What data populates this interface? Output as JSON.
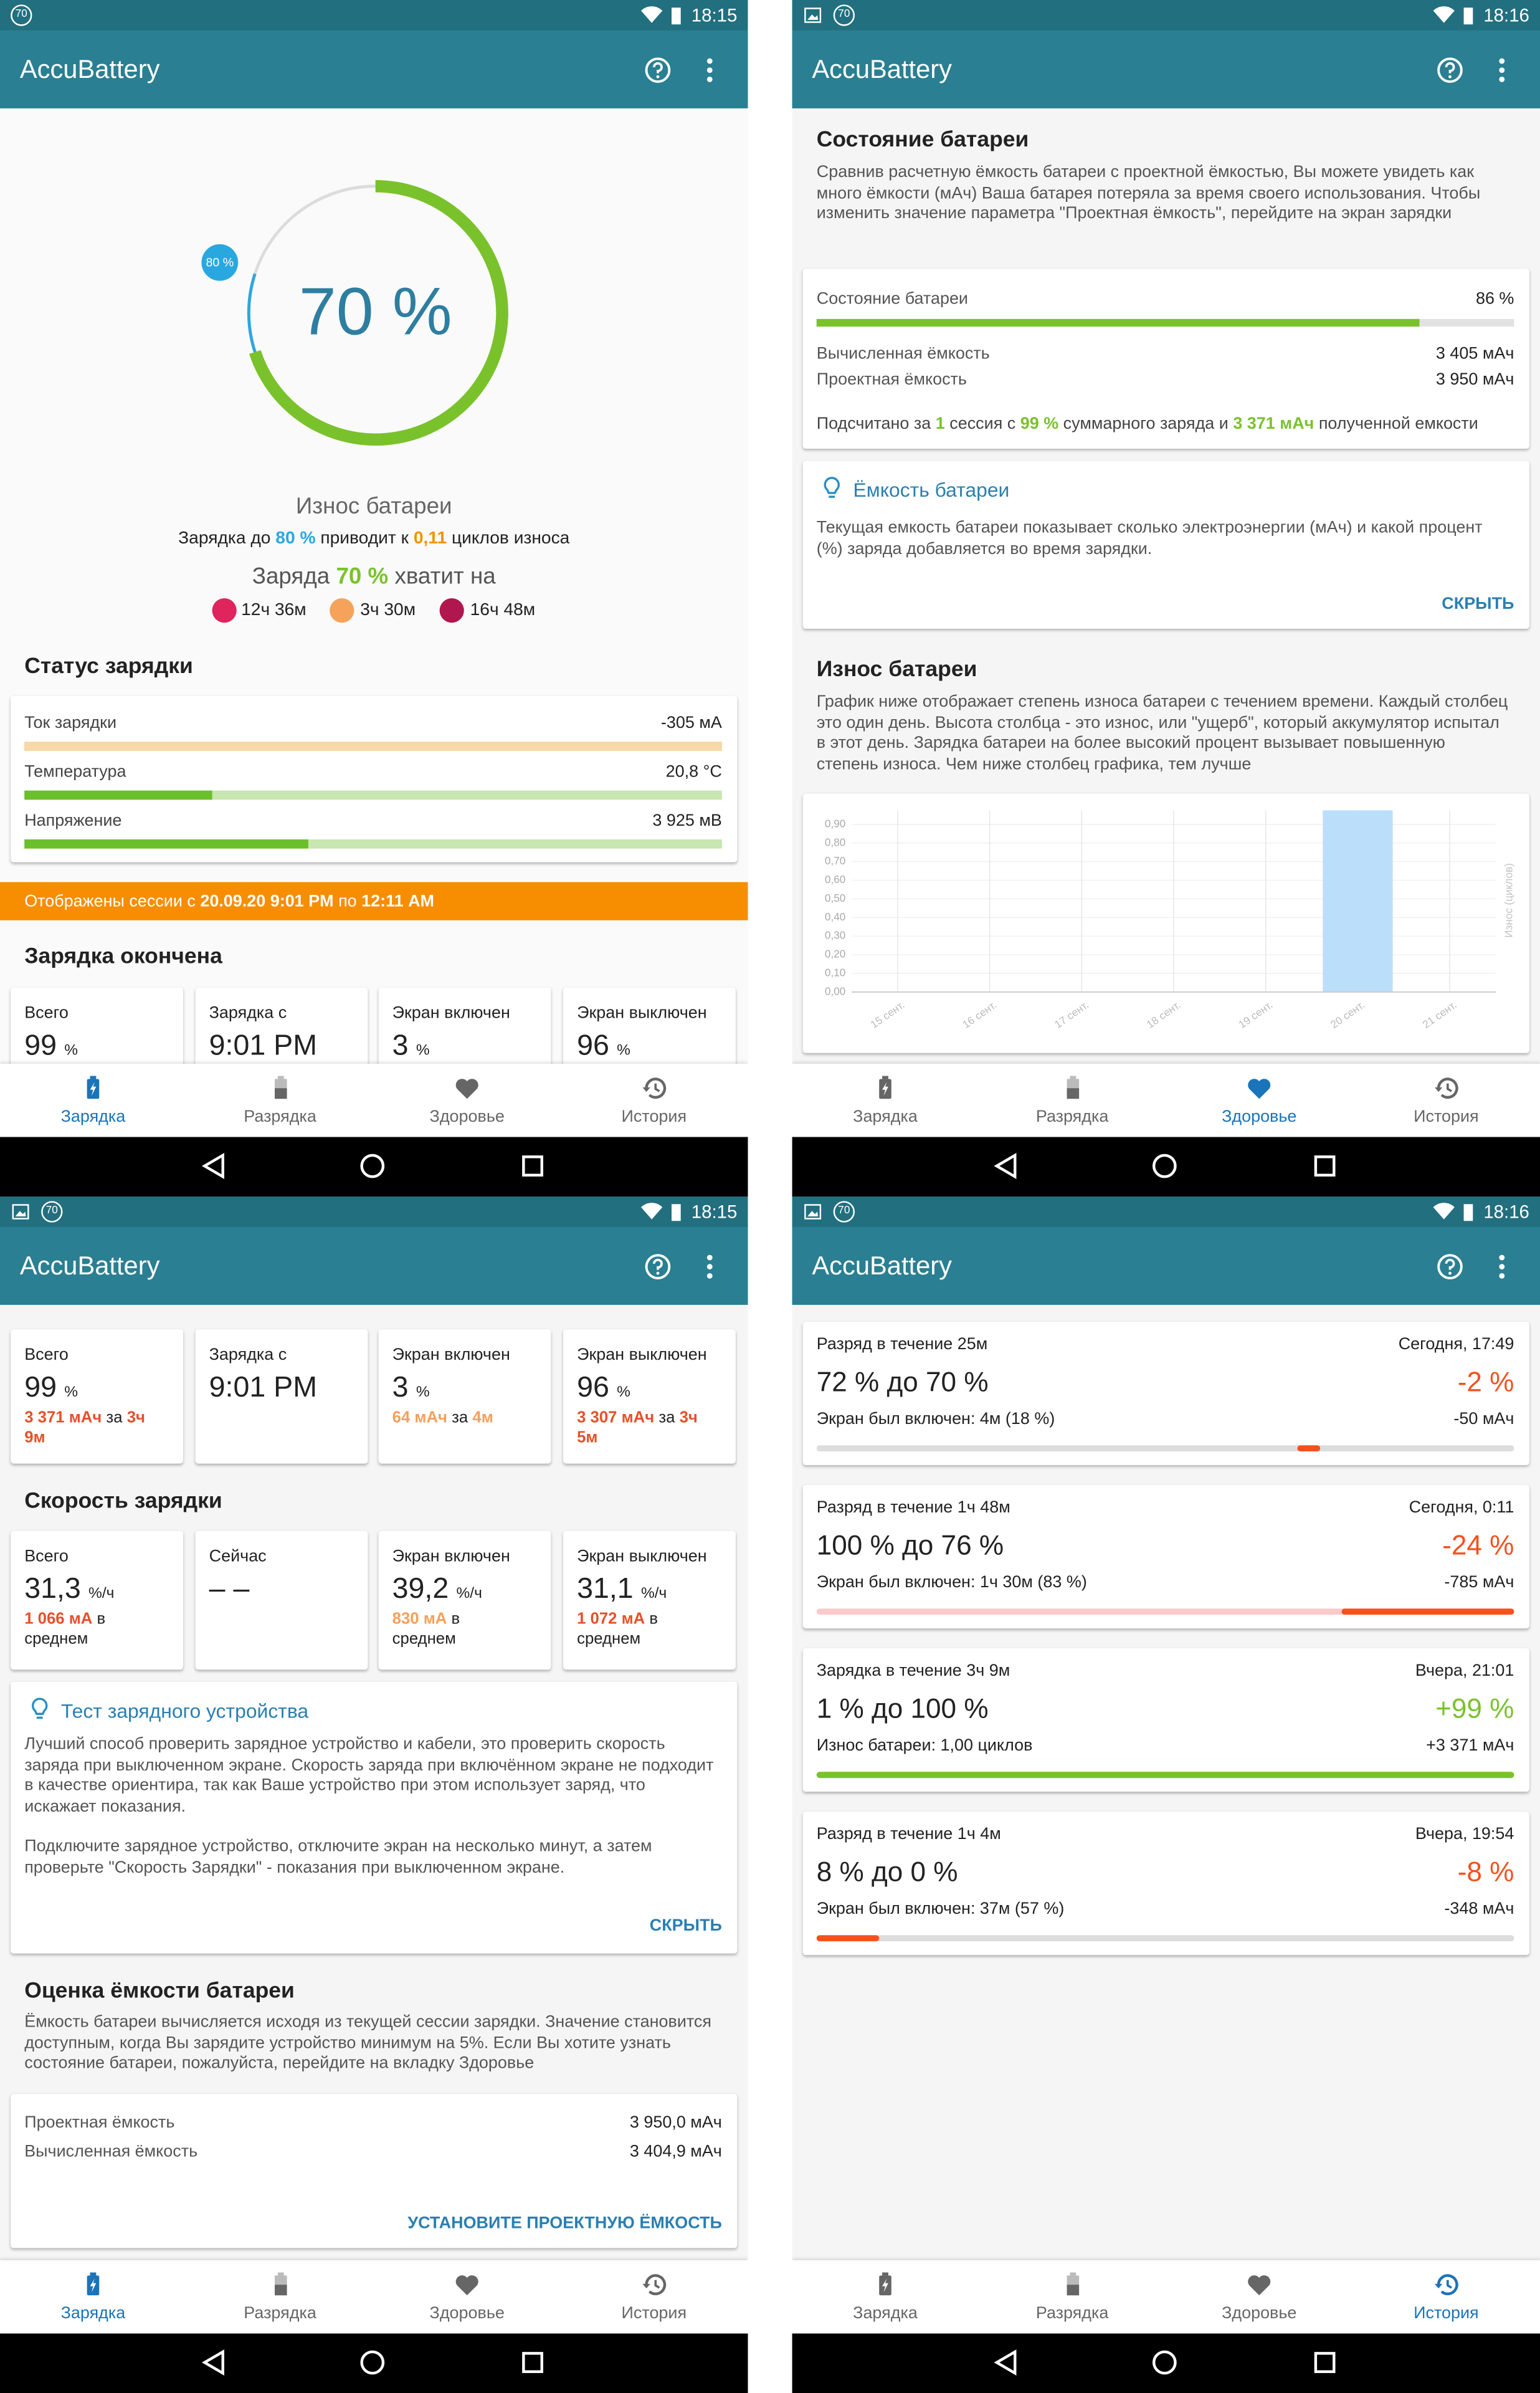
{
  "screens": [
    {
      "status_badge": "70",
      "time": "18:15",
      "app_title": "AccuBattery",
      "gauge_target": "80 %",
      "gauge_value": "70 %",
      "wear_title": "Износ батареи",
      "wear_line": [
        "Зарядка до ",
        "80 %",
        " приводит к ",
        "0,11",
        " циклов износа"
      ],
      "charge_line": [
        "Заряда ",
        "70 %",
        " хватит на"
      ],
      "estimates": [
        "12ч 36м",
        "3ч 30м",
        "16ч 48м"
      ],
      "status_title": "Статус зарядки",
      "status_rows": [
        [
          "Ток зарядки",
          "-305 мА"
        ],
        [
          "Температура",
          "20,8 °C"
        ],
        [
          "Напряжение",
          "3 925 мВ"
        ]
      ],
      "banner": [
        "Отображены сессии с ",
        "20.09.20 9:01 PM",
        " по ",
        "12:11 AM"
      ],
      "session_title": "Зарядка окончена",
      "tiles": [
        {
          "label": "Всего",
          "value": "99",
          "unit": "%"
        },
        {
          "label": "Зарядка с",
          "value": "9:01 PM"
        },
        {
          "label": "Экран включен",
          "value": "3",
          "unit": "%"
        },
        {
          "label": "Экран выключен",
          "value": "96",
          "unit": "%"
        }
      ],
      "nav": [
        "Зарядка",
        "Разрядка",
        "Здоровье",
        "История"
      ]
    },
    {
      "status_badge": "70",
      "time": "18:16",
      "app_title": "AccuBattery",
      "health_title": "Состояние батареи",
      "health_desc": "Сравнив расчетную ёмкость батареи с проектной ёмкостью, Вы можете увидеть как много ёмкости (мАч) Ваша батарея потеряла за время своего использования. Чтобы изменить значение параметра \"Проектная ёмкость\", перейдите на экран зарядки",
      "health_rows": [
        [
          "Состояние батареи",
          "86 %"
        ],
        [
          "Вычисленная ёмкость",
          "3 405 мАч"
        ],
        [
          "Проектная ёмкость",
          "3 950 мАч"
        ]
      ],
      "health_note": [
        "Подсчитано за ",
        "1",
        " сессия с ",
        "99 %",
        " суммарного заряда и ",
        "3 371 мАч",
        " полученной емкости"
      ],
      "tip": {
        "title": "Ёмкость батареи",
        "text": "Текущая емкость батареи показывает сколько электроэнергии (мАч) и какой процент (%) заряда добавляется во время зарядки.",
        "button": "СКРЫТЬ"
      },
      "wear_title": "Износ батареи",
      "wear_desc": "График ниже отображает степень износа батареи с течением времени. Каждый столбец это один день. Высота столбца - это износ, или \"ущерб\", который аккумулятор испытал в этот день. Зарядка батареи на более высокий процент вызывает повышенную степень износа. Чем ниже столбец графика, тем лучше",
      "nav": [
        "Зарядка",
        "Разрядка",
        "Здоровье",
        "История"
      ]
    },
    {
      "status_badge": "70",
      "time": "18:15",
      "app_title": "AccuBattery",
      "tiles": [
        {
          "label": "Всего",
          "value": "99",
          "unit": "%",
          "sub": [
            "3 371 мАч",
            " за ",
            "3ч 9м"
          ]
        },
        {
          "label": "Зарядка с",
          "value": "9:01 PM"
        },
        {
          "label": "Экран включен",
          "value": "3",
          "unit": "%",
          "sub": [
            "64 мАч",
            " за ",
            "4м"
          ]
        },
        {
          "label": "Экран выключен",
          "value": "96",
          "unit": "%",
          "sub": [
            "3 307 мАч",
            " за ",
            "3ч 5м"
          ]
        }
      ],
      "speed_title": "Скорость зарядки",
      "speed_tiles": [
        {
          "label": "Всего",
          "value": "31,3",
          "unit": "%/ч",
          "sub": [
            "1 066 мА",
            " в среднем"
          ]
        },
        {
          "label": "Сейчас",
          "value": "– –"
        },
        {
          "label": "Экран включен",
          "value": "39,2",
          "unit": "%/ч",
          "sub": [
            "830 мА",
            " в среднем"
          ]
        },
        {
          "label": "Экран выключен",
          "value": "31,1",
          "unit": "%/ч",
          "sub": [
            "1 072 мА",
            " в среднем"
          ]
        }
      ],
      "tip": {
        "title": "Тест зарядного устройства",
        "text": [
          "Лучший способ проверить зарядное устройство и кабели, это проверить скорость заряда при выключенном экране. Скорость заряда при включённом экране не подходит в качестве ориентира, так как Ваше устройство при этом использует заряд, что искажает показания.",
          "Подключите зарядное устройство, отключите экран на несколько минут, а затем проверьте \"Скорость Зарядки\" - показания при выключенном экране."
        ],
        "button": "СКРЫТЬ"
      },
      "capacity_title": "Оценка ёмкости батареи",
      "capacity_desc": "Ёмкость батареи вычисляется исходя из текущей сессии зарядки. Значение становится доступным, когда Вы зарядите устройство минимум на 5%. Если Вы хотите узнать состояние батареи, пожалуйста, перейдите на вкладку Здоровье",
      "capacity_rows": [
        [
          "Проектная ёмкость",
          "3 950,0 мАч"
        ],
        [
          "Вычисленная ёмкость",
          "3 404,9 мАч"
        ]
      ],
      "capacity_button": "УСТАНОВИТЕ ПРОЕКТНУЮ ЁМКОСТЬ",
      "nav": [
        "Зарядка",
        "Разрядка",
        "Здоровье",
        "История"
      ]
    },
    {
      "status_badge": "70",
      "time": "18:16",
      "app_title": "AccuBattery",
      "sessions": [
        {
          "title": "Разряд в течение 25м",
          "date": "Сегодня, 17:49",
          "range": "72 % до 70 %",
          "delta": "-2 %",
          "detail": "Экран был включен: 4м (18 %)",
          "amount": "-50 мАч"
        },
        {
          "title": "Разряд в течение 1ч 48м",
          "date": "Сегодня, 0:11",
          "range": "100 % до 76 %",
          "delta": "-24 %",
          "detail": "Экран был включен: 1ч 30м (83 %)",
          "amount": "-785 мАч"
        },
        {
          "title": "Зарядка в течение 3ч 9м",
          "date": "Вчера, 21:01",
          "range": "1 % до 100 %",
          "delta": "+99 %",
          "detail": "Износ батареи: 1,00 циклов",
          "amount": "+3 371 мАч"
        },
        {
          "title": "Разряд в течение 1ч 4м",
          "date": "Вчера, 19:54",
          "range": "8 % до 0 %",
          "delta": "-8 %",
          "detail": "Экран был включен: 37м (57 %)",
          "amount": "-348 мАч"
        }
      ],
      "nav": [
        "Зарядка",
        "Разрядка",
        "Здоровье",
        "История"
      ]
    }
  ],
  "chart_data": {
    "type": "bar",
    "categories": [
      "15 сент.",
      "16 сент.",
      "17 сент.",
      "18 сент.",
      "19 сент.",
      "20 сент.",
      "21 сент."
    ],
    "values": [
      0,
      0,
      0,
      0,
      0,
      1.0,
      0
    ],
    "color": "#bbdefb",
    "ylim": [
      0,
      0.975
    ],
    "yticks": [
      {
        "value": 0,
        "label": "0,00"
      },
      {
        "value": 0.1,
        "label": "0,10"
      },
      {
        "value": 0.2,
        "label": "0,20"
      },
      {
        "value": 0.3,
        "label": "0,30"
      },
      {
        "value": 0.4,
        "label": "0,40"
      },
      {
        "value": 0.5,
        "label": "0,50"
      },
      {
        "value": 0.6,
        "label": "0,60"
      },
      {
        "value": 0.7,
        "label": "0,70"
      },
      {
        "value": 0.8,
        "label": "0,80"
      },
      {
        "value": 0.9,
        "label": "0,90"
      }
    ],
    "y_label": "Износ (циклов)",
    "grid": true
  }
}
